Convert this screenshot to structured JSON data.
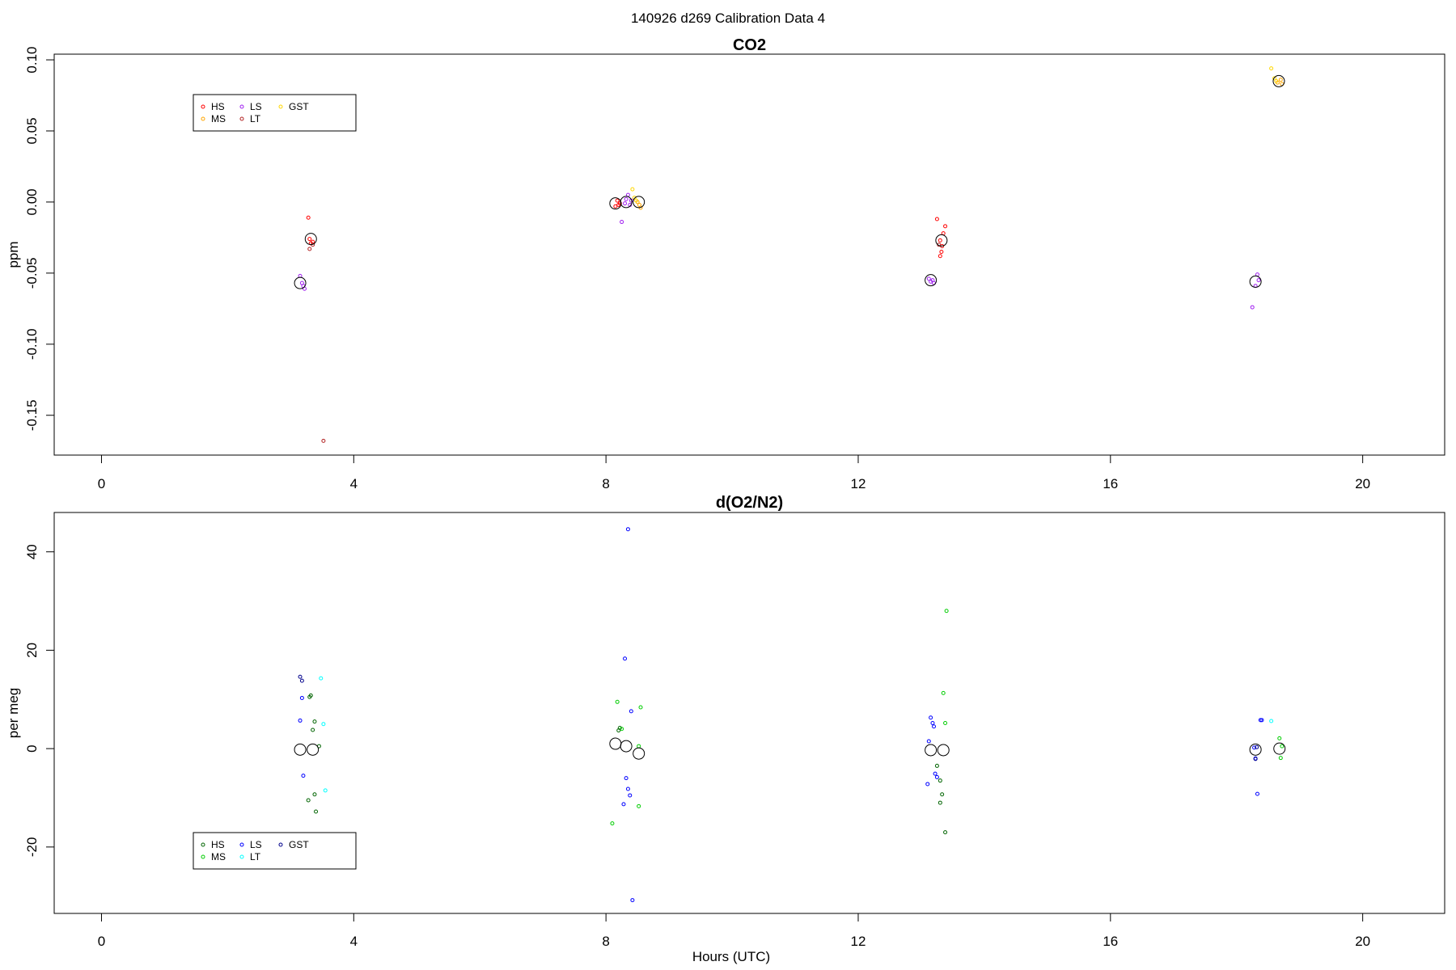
{
  "figure": {
    "title": "140926   d269   Calibration Data 4",
    "xlabel": "Hours (UTC)"
  },
  "chart_data": [
    {
      "type": "scatter",
      "title": "CO2",
      "ylabel": "ppm",
      "xlim": [
        -0.75,
        21.3
      ],
      "ylim": [
        -0.178,
        0.104
      ],
      "xticks": [
        0,
        4,
        8,
        12,
        16,
        20
      ],
      "yticks": [
        -0.15,
        -0.1,
        -0.05,
        0.0,
        0.05,
        0.1
      ],
      "ytick_labels": [
        "-0.15",
        "-0.10",
        "-0.05",
        "0.00",
        "0.05",
        "0.10"
      ],
      "legend": {
        "position": "top-left",
        "entries": [
          {
            "label": "HS",
            "color": "#ff0000"
          },
          {
            "label": "MS",
            "color": "#ffa500"
          },
          {
            "label": "LS",
            "color": "#a020f0"
          },
          {
            "label": "LT",
            "color": "#b22222"
          },
          {
            "label": "GST",
            "color": "#ffd700"
          }
        ]
      },
      "series": [
        {
          "name": "HS",
          "color": "#ff0000",
          "points": [
            [
              3.28,
              -0.011
            ],
            [
              3.3,
              -0.026
            ],
            [
              3.32,
              -0.029
            ],
            [
              3.35,
              -0.028
            ],
            [
              8.15,
              -0.003
            ],
            [
              8.18,
              0.001
            ],
            [
              8.2,
              -0.002
            ],
            [
              8.22,
              -0.001
            ],
            [
              13.25,
              -0.012
            ],
            [
              13.3,
              -0.027
            ],
            [
              13.33,
              -0.031
            ],
            [
              13.35,
              -0.022
            ],
            [
              13.38,
              -0.017
            ],
            [
              13.3,
              -0.038
            ],
            [
              13.32,
              -0.035
            ]
          ]
        },
        {
          "name": "MS",
          "color": "#ffa500",
          "points": [
            [
              8.5,
              0.0
            ],
            [
              8.53,
              -0.002
            ],
            [
              8.55,
              -0.004
            ],
            [
              18.65,
              0.084
            ],
            [
              18.7,
              0.086
            ],
            [
              18.72,
              0.083
            ]
          ]
        },
        {
          "name": "LS",
          "color": "#a020f0",
          "points": [
            [
              3.15,
              -0.052
            ],
            [
              3.18,
              -0.057
            ],
            [
              3.2,
              -0.059
            ],
            [
              3.22,
              -0.061
            ],
            [
              8.25,
              -0.014
            ],
            [
              8.3,
              -0.001
            ],
            [
              8.32,
              0.002
            ],
            [
              8.35,
              0.005
            ],
            [
              8.38,
              -0.002
            ],
            [
              8.4,
              0.001
            ],
            [
              13.12,
              -0.054
            ],
            [
              13.15,
              -0.056
            ],
            [
              13.18,
              -0.055
            ],
            [
              13.2,
              -0.057
            ],
            [
              18.25,
              -0.074
            ],
            [
              18.3,
              -0.059
            ],
            [
              18.33,
              -0.051
            ],
            [
              18.35,
              -0.055
            ]
          ]
        },
        {
          "name": "LT",
          "color": "#b22222",
          "points": [
            [
              3.3,
              -0.033
            ],
            [
              3.35,
              -0.03
            ],
            [
              3.52,
              -0.168
            ],
            [
              13.28,
              -0.03
            ]
          ]
        },
        {
          "name": "GST",
          "color": "#ffd700",
          "points": [
            [
              8.42,
              0.009
            ],
            [
              8.45,
              0.003
            ],
            [
              8.48,
              0.001
            ],
            [
              18.55,
              0.094
            ],
            [
              18.6,
              0.087
            ],
            [
              18.63,
              0.085
            ]
          ]
        },
        {
          "color": "#000000",
          "marker": "mean",
          "points": [
            [
              3.15,
              -0.057
            ],
            [
              3.32,
              -0.026
            ],
            [
              8.15,
              -0.001
            ],
            [
              8.32,
              0.0
            ],
            [
              8.52,
              0.0
            ],
            [
              13.15,
              -0.055
            ],
            [
              13.32,
              -0.027
            ],
            [
              18.3,
              -0.056
            ],
            [
              18.67,
              0.085
            ]
          ]
        }
      ]
    },
    {
      "type": "scatter",
      "title": "d(O2/N2)",
      "ylabel": "per meg",
      "xlabel": "Hours (UTC)",
      "xlim": [
        -0.75,
        21.3
      ],
      "ylim": [
        -33.5,
        48
      ],
      "xticks": [
        0,
        4,
        8,
        12,
        16,
        20
      ],
      "yticks": [
        -20,
        0,
        20,
        40
      ],
      "ytick_labels": [
        "-20",
        "0",
        "20",
        "40"
      ],
      "legend": {
        "position": "bottom-left",
        "entries": [
          {
            "label": "HS",
            "color": "#006400"
          },
          {
            "label": "MS",
            "color": "#00cd00"
          },
          {
            "label": "LS",
            "color": "#0000ff"
          },
          {
            "label": "LT",
            "color": "#00ffff"
          },
          {
            "label": "GST",
            "color": "#00008b"
          }
        ]
      },
      "series": [
        {
          "name": "HS",
          "color": "#006400",
          "points": [
            [
              3.3,
              10.5
            ],
            [
              3.32,
              10.8
            ],
            [
              3.35,
              3.8
            ],
            [
              3.38,
              5.5
            ],
            [
              3.28,
              -10.5
            ],
            [
              3.38,
              -9.3
            ],
            [
              3.4,
              -12.8
            ],
            [
              3.45,
              0.5
            ],
            [
              8.2,
              3.7
            ],
            [
              8.22,
              4.2
            ],
            [
              13.25,
              -3.5
            ],
            [
              13.3,
              -6.5
            ],
            [
              13.33,
              -9.3
            ],
            [
              13.3,
              -11.0
            ],
            [
              13.38,
              -17.0
            ]
          ]
        },
        {
          "name": "MS",
          "color": "#00cd00",
          "points": [
            [
              8.18,
              9.5
            ],
            [
              8.25,
              4.0
            ],
            [
              8.52,
              0.5
            ],
            [
              8.55,
              8.4
            ],
            [
              8.52,
              -11.7
            ],
            [
              8.1,
              -15.2
            ],
            [
              13.35,
              11.3
            ],
            [
              13.38,
              5.2
            ],
            [
              13.4,
              28.0
            ],
            [
              18.68,
              2.1
            ],
            [
              18.7,
              -1.9
            ],
            [
              18.72,
              0.5
            ]
          ]
        },
        {
          "name": "LS",
          "color": "#0000ff",
          "points": [
            [
              3.15,
              5.7
            ],
            [
              3.18,
              10.3
            ],
            [
              3.2,
              -5.5
            ],
            [
              8.3,
              18.3
            ],
            [
              8.32,
              -6.0
            ],
            [
              8.35,
              -8.2
            ],
            [
              8.38,
              -9.5
            ],
            [
              8.28,
              -11.3
            ],
            [
              8.4,
              7.6
            ],
            [
              8.35,
              44.6
            ],
            [
              8.42,
              -30.8
            ],
            [
              13.1,
              -7.2
            ],
            [
              13.12,
              1.5
            ],
            [
              13.15,
              6.3
            ],
            [
              13.18,
              5.2
            ],
            [
              13.2,
              4.5
            ],
            [
              13.22,
              -5.1
            ],
            [
              13.25,
              -5.8
            ],
            [
              18.28,
              0.2
            ],
            [
              18.3,
              -2.0
            ],
            [
              18.33,
              -9.2
            ],
            [
              18.38,
              5.8
            ],
            [
              18.4,
              5.8
            ]
          ]
        },
        {
          "name": "LT",
          "color": "#00ffff",
          "points": [
            [
              3.48,
              14.3
            ],
            [
              3.52,
              5.0
            ],
            [
              3.55,
              -8.5
            ],
            [
              18.55,
              5.6
            ]
          ]
        },
        {
          "name": "GST",
          "color": "#00008b",
          "points": [
            [
              3.15,
              14.6
            ],
            [
              3.18,
              13.8
            ],
            [
              18.3,
              -2.1
            ],
            [
              18.32,
              0.3
            ]
          ]
        },
        {
          "color": "#000000",
          "marker": "mean",
          "points": [
            [
              3.15,
              -0.2
            ],
            [
              3.35,
              -0.2
            ],
            [
              8.15,
              1.0
            ],
            [
              8.32,
              0.5
            ],
            [
              8.52,
              -1.0
            ],
            [
              13.15,
              -0.3
            ],
            [
              13.35,
              -0.3
            ],
            [
              18.3,
              -0.2
            ],
            [
              18.68,
              0.0
            ]
          ]
        }
      ]
    }
  ]
}
